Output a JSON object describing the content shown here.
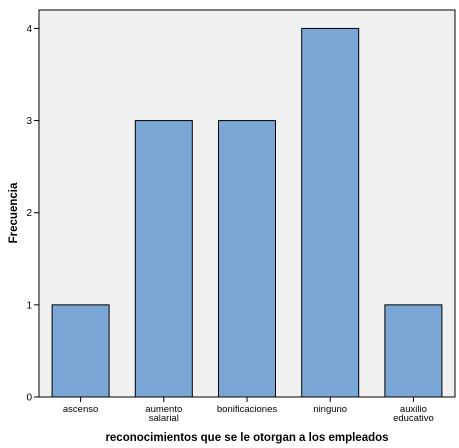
{
  "chart_data": {
    "type": "bar",
    "title": "",
    "xlabel": "reconocimientos que se le otorgan a los empleados",
    "ylabel": "Frecuencia",
    "categories": [
      [
        "ascenso"
      ],
      [
        "aumento",
        "salarial"
      ],
      [
        "bonificaciones"
      ],
      [
        "ninguno"
      ],
      [
        "auxilio",
        "educativo"
      ]
    ],
    "values": [
      1,
      3,
      3,
      4,
      1
    ],
    "ylim": [
      0,
      4.2
    ],
    "yticks": [
      0,
      1,
      2,
      3,
      4
    ],
    "grid": false,
    "colors": {
      "plot_background": "#f0f0f0",
      "bar_fill": "#7aa7d6",
      "bar_stroke": "#000000"
    }
  }
}
